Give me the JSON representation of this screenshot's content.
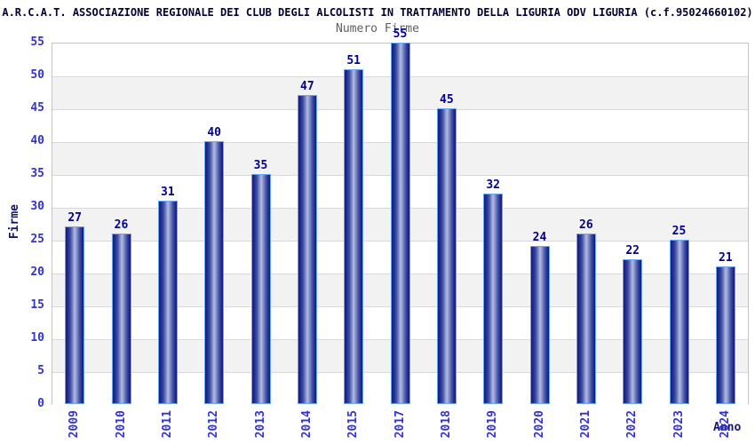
{
  "chart_data": {
    "type": "bar",
    "title": "A.R.C.A.T. ASSOCIAZIONE REGIONALE DEI CLUB DEGLI ALCOLISTI IN TRATTAMENTO DELLA LIGURIA ODV LIGURIA (c.f.95024660102)",
    "subtitle": "Numero Firme",
    "xlabel": "Anno",
    "ylabel": "Firme",
    "categories": [
      "2009",
      "2010",
      "2011",
      "2012",
      "2013",
      "2014",
      "2015",
      "2017",
      "2018",
      "2019",
      "2020",
      "2021",
      "2022",
      "2023",
      "2024"
    ],
    "values": [
      27,
      26,
      31,
      40,
      35,
      47,
      51,
      55,
      45,
      32,
      24,
      26,
      22,
      25,
      21
    ],
    "ylim": [
      0,
      55
    ],
    "ytick_step": 5,
    "grid": "horizontal-bands",
    "legend": "none",
    "colors": {
      "title": "#000033",
      "subtitle": "#606060",
      "tick_label": "#3232d6",
      "value_label": "#00008b",
      "axis_title": "#15156b",
      "band_even": "#ffffff",
      "band_odd": "#f2f2f2",
      "gridline": "#d9d9d9",
      "bar_dark": "#141c78",
      "bar_light": "#b4bce6",
      "bar_border": "#69a5f2"
    }
  }
}
